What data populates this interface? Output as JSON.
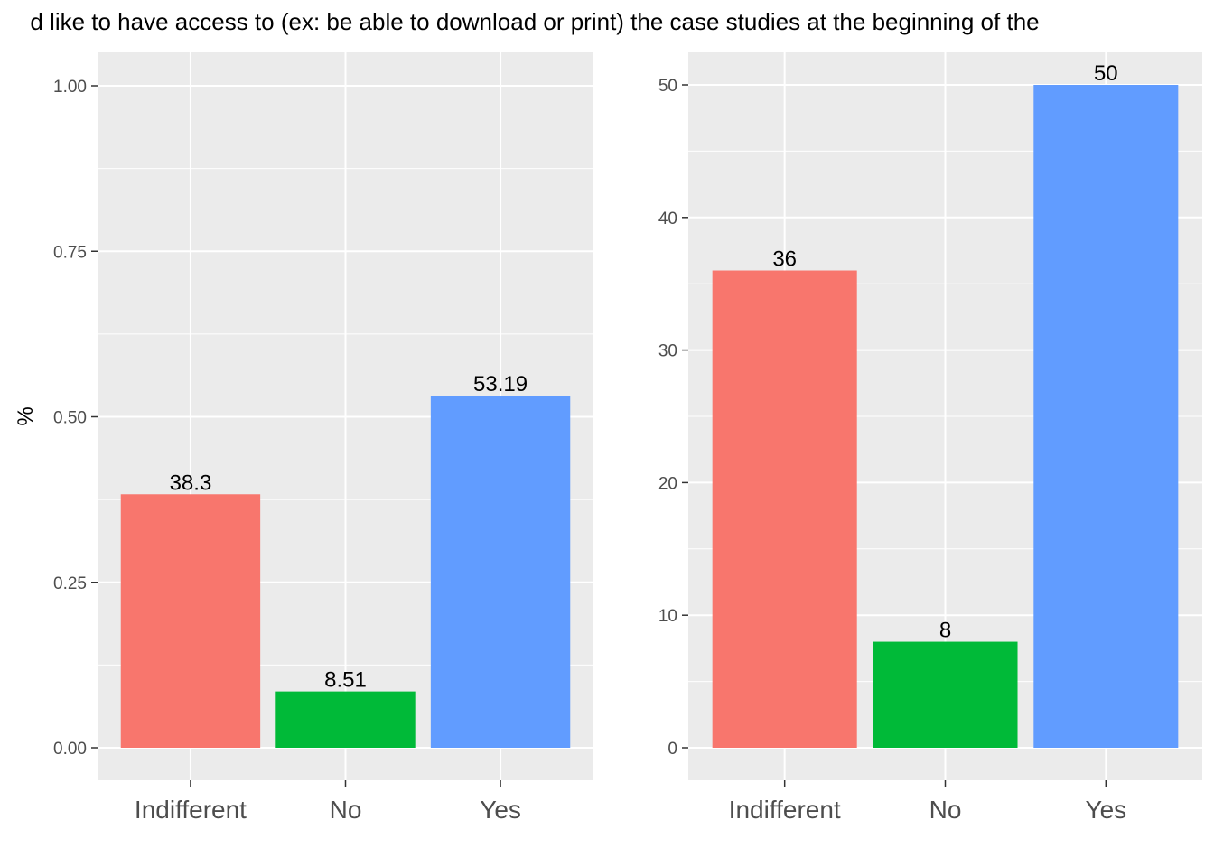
{
  "title": "d like to have access to (ex: be able to download or print) the case studies at the beginning of the",
  "colors": {
    "panel_bg": "#ebebeb",
    "grid": "#ffffff",
    "Indifferent": "#f8766d",
    "No": "#00ba38",
    "Yes": "#619cff"
  },
  "chart_data": [
    {
      "type": "bar",
      "categories": [
        "Indifferent",
        "No",
        "Yes"
      ],
      "values": [
        0.383,
        0.0851,
        0.5319
      ],
      "data_labels": [
        "38.3",
        "8.51",
        "53.19"
      ],
      "ylabel": "%",
      "xlabel": "",
      "ylim": [
        0,
        1.05
      ],
      "yticks": [
        0,
        0.25,
        0.5,
        0.75,
        1.0
      ],
      "ytick_labels": [
        "0.00",
        "0.25",
        "0.50",
        "0.75",
        "1.00"
      ],
      "grid": true,
      "legend": "none"
    },
    {
      "type": "bar",
      "categories": [
        "Indifferent",
        "No",
        "Yes"
      ],
      "values": [
        36,
        8,
        50
      ],
      "data_labels": [
        "36",
        "8",
        "50"
      ],
      "ylabel": "",
      "xlabel": "",
      "ylim": [
        0,
        52.5
      ],
      "yticks": [
        0,
        10,
        20,
        30,
        40,
        50
      ],
      "ytick_labels": [
        "0",
        "10",
        "20",
        "30",
        "40",
        "50"
      ],
      "grid": true,
      "legend": "none"
    }
  ]
}
